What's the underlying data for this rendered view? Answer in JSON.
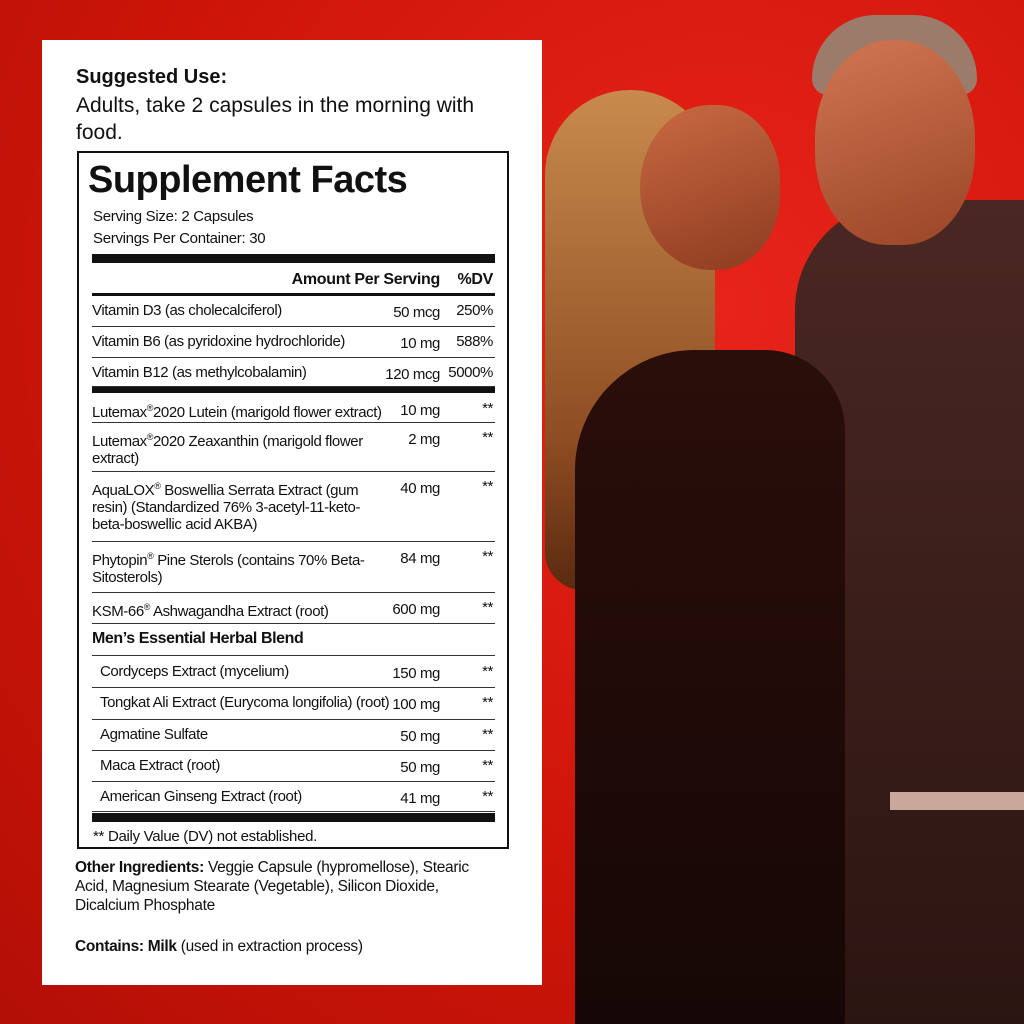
{
  "suggested_use": {
    "heading": "Suggested Use:",
    "text": "Adults, take 2 capsules in the morning with food."
  },
  "facts": {
    "title": "Supplement Facts",
    "serving_size": "Serving Size: 2 Capsules",
    "servings_per_container": "Servings Per Container: 30",
    "col_amount": "Amount Per Serving",
    "col_dv": "%DV",
    "rows": [
      {
        "name": "Vitamin D3  (as cholecalciferol)",
        "amount": "50 mcg",
        "dv": "250%"
      },
      {
        "name": "Vitamin B6  (as pyridoxine hydrochloride)",
        "amount": "10 mg",
        "dv": "588%"
      },
      {
        "name": "Vitamin B12  (as methylcobalamin)",
        "amount": "120 mcg",
        "dv": "5000%"
      },
      {
        "name": "Lutemax®2020 Lutein (marigold flower extract)",
        "amount": "10 mg",
        "dv": "**"
      },
      {
        "name": "Lutemax®2020 Zeaxanthin (marigold flower extract)",
        "amount": "2 mg",
        "dv": "**"
      },
      {
        "name": "AquaLOX® Boswellia Serrata Extract (gum resin) (Standardized 76% 3-acetyl-11-keto-beta-boswellic acid AKBA)",
        "amount": "40 mg",
        "dv": "**"
      },
      {
        "name": "Phytopin® Pine Sterols (contains 70% Beta-Sitosterols)",
        "amount": "84 mg",
        "dv": "**"
      },
      {
        "name": "KSM-66® Ashwagandha Extract (root)",
        "amount": "600 mg",
        "dv": "**"
      }
    ],
    "blend_title": "Men’s Essential Herbal Blend",
    "blend_rows": [
      {
        "name": "Cordyceps Extract (mycelium)",
        "amount": "150 mg",
        "dv": "**"
      },
      {
        "name": "Tongkat Ali Extract (Eurycoma longifolia) (root)",
        "amount": "100 mg",
        "dv": "**"
      },
      {
        "name": "Agmatine Sulfate",
        "amount": "50 mg",
        "dv": "**"
      },
      {
        "name": "Maca Extract (root)",
        "amount": "50 mg",
        "dv": "**"
      },
      {
        "name": "American Ginseng Extract (root)",
        "amount": "41 mg",
        "dv": "**"
      }
    ],
    "footnote": "** Daily Value (DV) not established."
  },
  "other_ingredients": {
    "label": "Other Ingredients:",
    "text": "Veggie Capsule (hypromellose), Stearic Acid, Magnesium Stearate (Vegetable), Silicon Dioxide, Dicalcium Phosphate"
  },
  "contains": {
    "label": "Contains: Milk",
    "text": "(used in extraction process)"
  },
  "colors": {
    "background": "#d2140c",
    "panel": "#ffffff",
    "text": "#111111"
  }
}
